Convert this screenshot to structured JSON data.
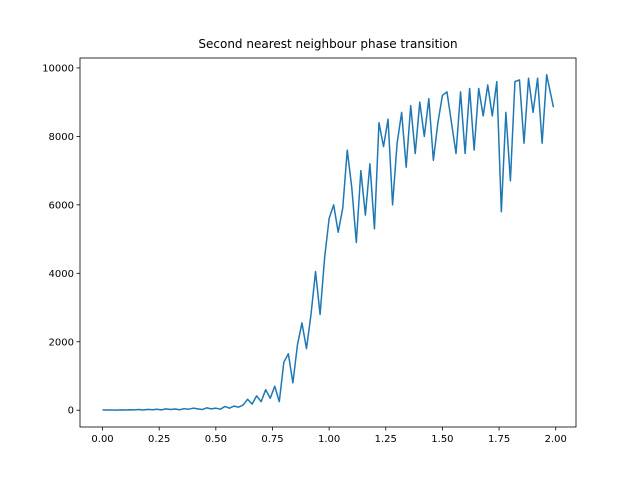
{
  "chart_data": {
    "type": "line",
    "title": "Second nearest neighbour phase transition",
    "x": [
      0,
      0.02,
      0.04,
      0.06,
      0.08,
      0.1,
      0.12,
      0.14,
      0.16,
      0.18,
      0.2,
      0.22,
      0.24,
      0.26,
      0.28,
      0.3,
      0.32,
      0.34,
      0.36,
      0.38,
      0.4,
      0.42,
      0.44,
      0.46,
      0.48,
      0.5,
      0.52,
      0.54,
      0.56,
      0.58,
      0.6,
      0.62,
      0.64,
      0.66,
      0.68,
      0.7,
      0.72,
      0.74,
      0.76,
      0.78,
      0.8,
      0.82,
      0.84,
      0.86,
      0.88,
      0.9,
      0.92,
      0.94,
      0.96,
      0.98,
      1,
      1.02,
      1.04,
      1.06,
      1.08,
      1.1,
      1.12,
      1.14,
      1.16,
      1.18,
      1.2,
      1.22,
      1.24,
      1.26,
      1.28,
      1.3,
      1.32,
      1.34,
      1.36,
      1.38,
      1.4,
      1.42,
      1.44,
      1.46,
      1.48,
      1.5,
      1.52,
      1.54,
      1.56,
      1.58,
      1.6,
      1.62,
      1.64,
      1.66,
      1.68,
      1.7,
      1.72,
      1.74,
      1.76,
      1.78,
      1.8,
      1.82,
      1.84,
      1.86,
      1.88,
      1.9,
      1.92,
      1.94,
      1.96,
      1.99
    ],
    "series": [
      {
        "color": "#1f77b4",
        "values": [
          10,
          5,
          8,
          3,
          12,
          6,
          15,
          10,
          20,
          8,
          25,
          15,
          30,
          10,
          40,
          20,
          35,
          15,
          45,
          30,
          60,
          40,
          20,
          70,
          40,
          60,
          30,
          110,
          60,
          120,
          90,
          150,
          320,
          180,
          420,
          250,
          600,
          350,
          700,
          250,
          1400,
          1650,
          800,
          1900,
          2550,
          1800,
          2800,
          4050,
          2800,
          4450,
          5600,
          6000,
          5200,
          5900,
          7600,
          6500,
          4900,
          7000,
          5700,
          7200,
          5300,
          8400,
          7700,
          8500,
          6000,
          7800,
          8700,
          7100,
          8900,
          7500,
          9000,
          8000,
          9100,
          7300,
          8400,
          9200,
          9300,
          8400,
          7500,
          9300,
          7500,
          9400,
          7600,
          9400,
          8600,
          9500,
          8600,
          9600,
          5800,
          8700,
          6700,
          9600,
          9650,
          7800,
          9700,
          8700,
          9700,
          7800,
          9800,
          8850
        ]
      }
    ],
    "xlim": [
      -0.0995,
      2.0895
    ],
    "ylim": [
      -490,
      10290
    ],
    "xticks": [
      {
        "value": 0,
        "label": "0.00"
      },
      {
        "value": 0.25,
        "label": "0.25"
      },
      {
        "value": 0.5,
        "label": "0.50"
      },
      {
        "value": 0.75,
        "label": "0.75"
      },
      {
        "value": 1,
        "label": "1.00"
      },
      {
        "value": 1.25,
        "label": "1.25"
      },
      {
        "value": 1.5,
        "label": "1.50"
      },
      {
        "value": 1.75,
        "label": "1.75"
      },
      {
        "value": 2,
        "label": "2.00"
      }
    ],
    "yticks": [
      0,
      2000,
      4000,
      6000,
      8000,
      10000
    ]
  }
}
